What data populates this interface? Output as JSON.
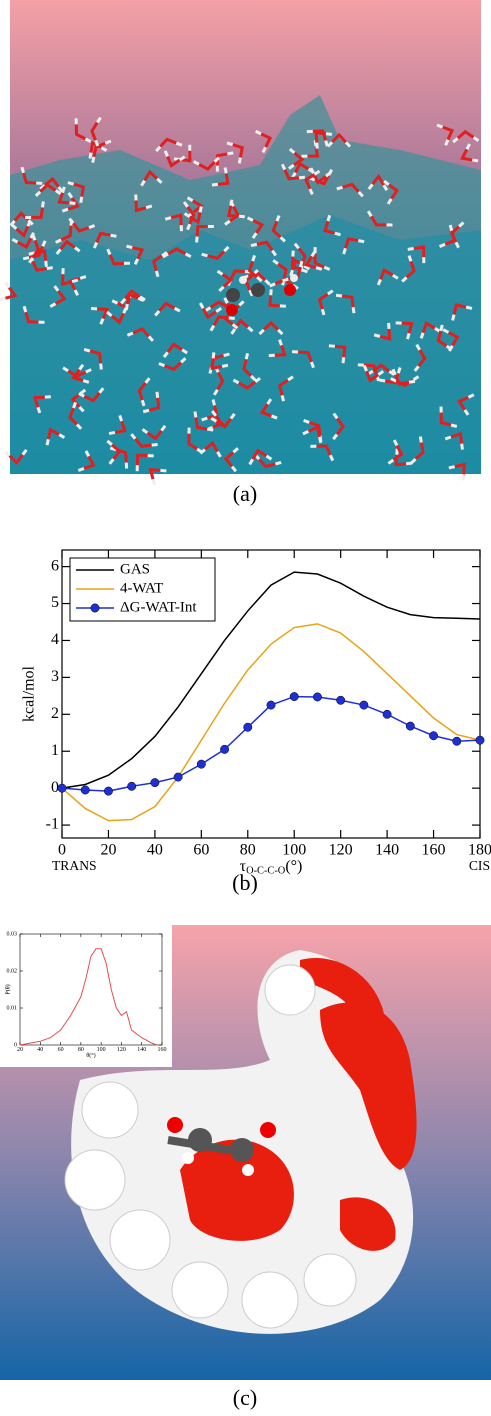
{
  "captions": [
    "(a)",
    "(b)",
    "(c)"
  ],
  "chart_data": [
    {
      "type": "line",
      "ylabel": "kcal/mol",
      "xlabel": "τ",
      "xlabel_subscript": "O-C-C-O",
      "xlabel_unit": "(°)",
      "annotations": [
        "TRANS",
        "CIS"
      ],
      "x": [
        0,
        10,
        20,
        30,
        40,
        50,
        60,
        70,
        80,
        90,
        100,
        110,
        120,
        130,
        140,
        150,
        160,
        170,
        180
      ],
      "series": [
        {
          "name": "GAS",
          "color": "#000000",
          "marker": false,
          "values": [
            0,
            0.1,
            0.35,
            0.8,
            1.4,
            2.2,
            3.1,
            4.0,
            4.8,
            5.5,
            5.85,
            5.8,
            5.55,
            5.2,
            4.9,
            4.7,
            4.62,
            4.6,
            4.58
          ]
        },
        {
          "name": "4-WAT",
          "color": "#e8a317",
          "marker": false,
          "values": [
            0,
            -0.55,
            -0.88,
            -0.85,
            -0.5,
            0.3,
            1.3,
            2.3,
            3.2,
            3.9,
            4.35,
            4.45,
            4.2,
            3.7,
            3.1,
            2.5,
            1.9,
            1.45,
            1.3
          ]
        },
        {
          "name": "ΔG-WAT-Int",
          "color": "#1f2fd6",
          "marker": true,
          "values": [
            0,
            -0.05,
            -0.08,
            0.05,
            0.15,
            0.3,
            0.65,
            1.05,
            1.65,
            2.25,
            2.48,
            2.47,
            2.38,
            2.25,
            2.0,
            1.68,
            1.42,
            1.27,
            1.3
          ]
        }
      ],
      "xlim": [
        0,
        180
      ],
      "xticks": [
        0,
        20,
        40,
        60,
        80,
        100,
        120,
        140,
        160,
        180
      ],
      "ylim": [
        -1.35,
        6.45
      ],
      "yticks": [
        -1,
        0,
        1,
        2,
        3,
        4,
        5,
        6
      ],
      "legend": "upper left"
    },
    {
      "type": "line",
      "ylabel": "P(θ)",
      "xlabel": "θ(°)",
      "x": [
        20,
        30,
        40,
        50,
        60,
        70,
        80,
        85,
        90,
        95,
        100,
        105,
        110,
        115,
        120,
        125,
        130,
        140,
        150,
        155
      ],
      "series": [
        {
          "color": "#e05050",
          "marker": false,
          "values": [
            0,
            0.0005,
            0.001,
            0.002,
            0.004,
            0.008,
            0.013,
            0.018,
            0.024,
            0.026,
            0.026,
            0.022,
            0.015,
            0.01,
            0.008,
            0.009,
            0.004,
            0.002,
            0.0005,
            0
          ]
        }
      ],
      "xlim": [
        20,
        160
      ],
      "xticks": [
        20,
        40,
        60,
        80,
        100,
        120,
        140,
        160
      ],
      "ylim": [
        0,
        0.03
      ],
      "yticks": [
        0,
        0.01,
        0.02,
        0.03
      ]
    }
  ]
}
